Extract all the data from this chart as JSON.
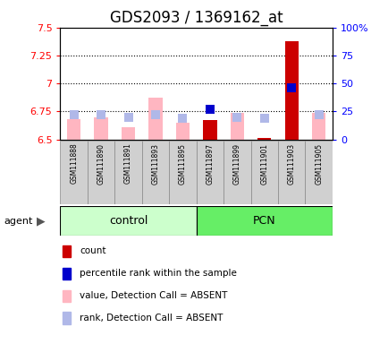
{
  "title": "GDS2093 / 1369162_at",
  "samples": [
    "GSM111888",
    "GSM111890",
    "GSM111891",
    "GSM111893",
    "GSM111895",
    "GSM111897",
    "GSM111899",
    "GSM111901",
    "GSM111903",
    "GSM111905"
  ],
  "groups": [
    "control",
    "control",
    "control",
    "control",
    "control",
    "PCN",
    "PCN",
    "PCN",
    "PCN",
    "PCN"
  ],
  "values_absent": [
    6.68,
    6.7,
    6.61,
    6.87,
    6.65,
    null,
    6.74,
    null,
    null,
    6.74
  ],
  "ranks_absent": [
    22,
    22,
    20,
    22,
    19,
    null,
    20,
    19,
    null,
    22
  ],
  "values_present": [
    null,
    null,
    null,
    null,
    null,
    6.67,
    null,
    6.51,
    7.38,
    null
  ],
  "ranks_present": [
    null,
    null,
    null,
    null,
    null,
    27,
    null,
    null,
    46,
    null
  ],
  "ylim_left": [
    6.5,
    7.5
  ],
  "ylim_right": [
    0,
    100
  ],
  "yticks_left": [
    6.5,
    6.75,
    7.0,
    7.25,
    7.5
  ],
  "ytick_labels_left": [
    "6.5",
    "6.75",
    "7",
    "7.25",
    "7.5"
  ],
  "yticks_right": [
    0,
    25,
    50,
    75,
    100
  ],
  "ytick_labels_right": [
    "0",
    "25",
    "50",
    "75",
    "100%"
  ],
  "hlines": [
    6.75,
    7.0,
    7.25
  ],
  "color_value_absent": "#ffb6c1",
  "color_rank_absent": "#b0b8e8",
  "color_value_present": "#cc0000",
  "color_rank_present": "#0000cc",
  "control_bg": "#ccffcc",
  "pcn_bg": "#66ee66",
  "sample_box_bg": "#d0d0d0",
  "figsize": [
    4.35,
    3.84
  ],
  "dpi": 100,
  "bar_width": 0.5,
  "dot_size": 60
}
